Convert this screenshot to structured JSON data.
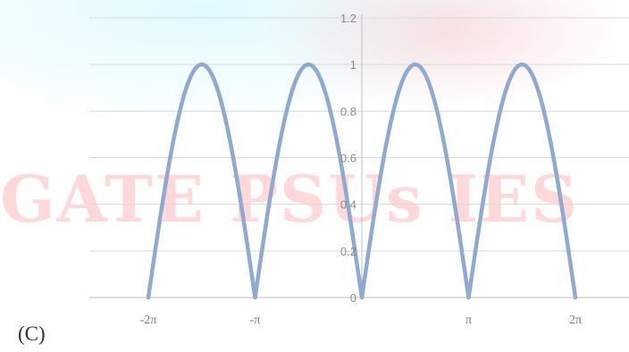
{
  "watermark": {
    "text": "GATE PSUs IES"
  },
  "option_label": "(C)",
  "colors": {
    "curve": "#8eaad0",
    "grid": "#d9d9d9",
    "axis": "#bfbfbf"
  },
  "chart_data": {
    "type": "line",
    "function": "|sin(x)|",
    "x_range": [
      -6.2832,
      6.2832
    ],
    "ylim": [
      0,
      1.2
    ],
    "y_ticks": [
      "0",
      "0.2",
      "0.4",
      "0.6",
      "0.8",
      "1",
      "1.2"
    ],
    "x_tick_labels": [
      "-2π",
      "-π",
      "π",
      "2π"
    ],
    "x_tick_values": [
      -6.2832,
      -3.1416,
      3.1416,
      6.2832
    ],
    "series": [
      {
        "x": [
          -6.2832,
          -5.4978,
          -4.7124,
          -3.927,
          -3.1416,
          -2.3562,
          -1.5708,
          -0.7854,
          0,
          0.7854,
          1.5708,
          2.3562,
          3.1416,
          3.927,
          4.7124,
          5.4978,
          6.2832
        ],
        "values": [
          0,
          0.707,
          1,
          0.707,
          0,
          0.707,
          1,
          0.707,
          0,
          0.707,
          1,
          0.707,
          0,
          0.707,
          1,
          0.707,
          0
        ]
      }
    ],
    "grid": true
  }
}
